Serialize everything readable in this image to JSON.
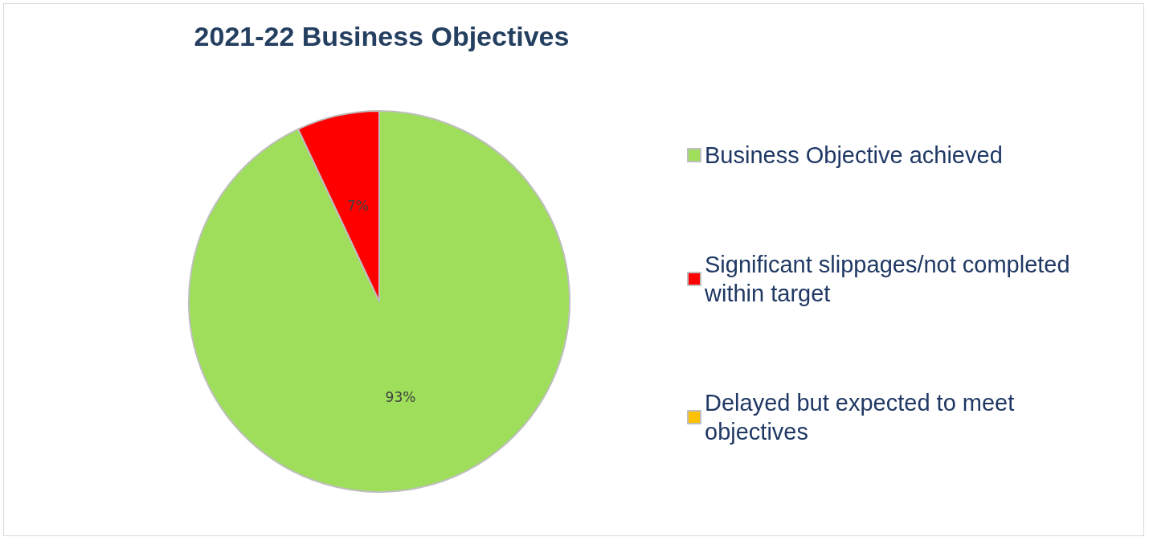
{
  "chart_data": {
    "type": "pie",
    "title": "2021-22 Business Objectives",
    "categories": [
      "Business Objective achieved",
      "Significant slippages/not completed within target",
      "Delayed but expected to meet objectives"
    ],
    "values": [
      93,
      7,
      0
    ],
    "colors": [
      "#9ede5a",
      "#ff0000",
      "#ffc000"
    ],
    "value_labels": [
      "93%",
      "7%",
      null
    ],
    "legend": "right"
  }
}
